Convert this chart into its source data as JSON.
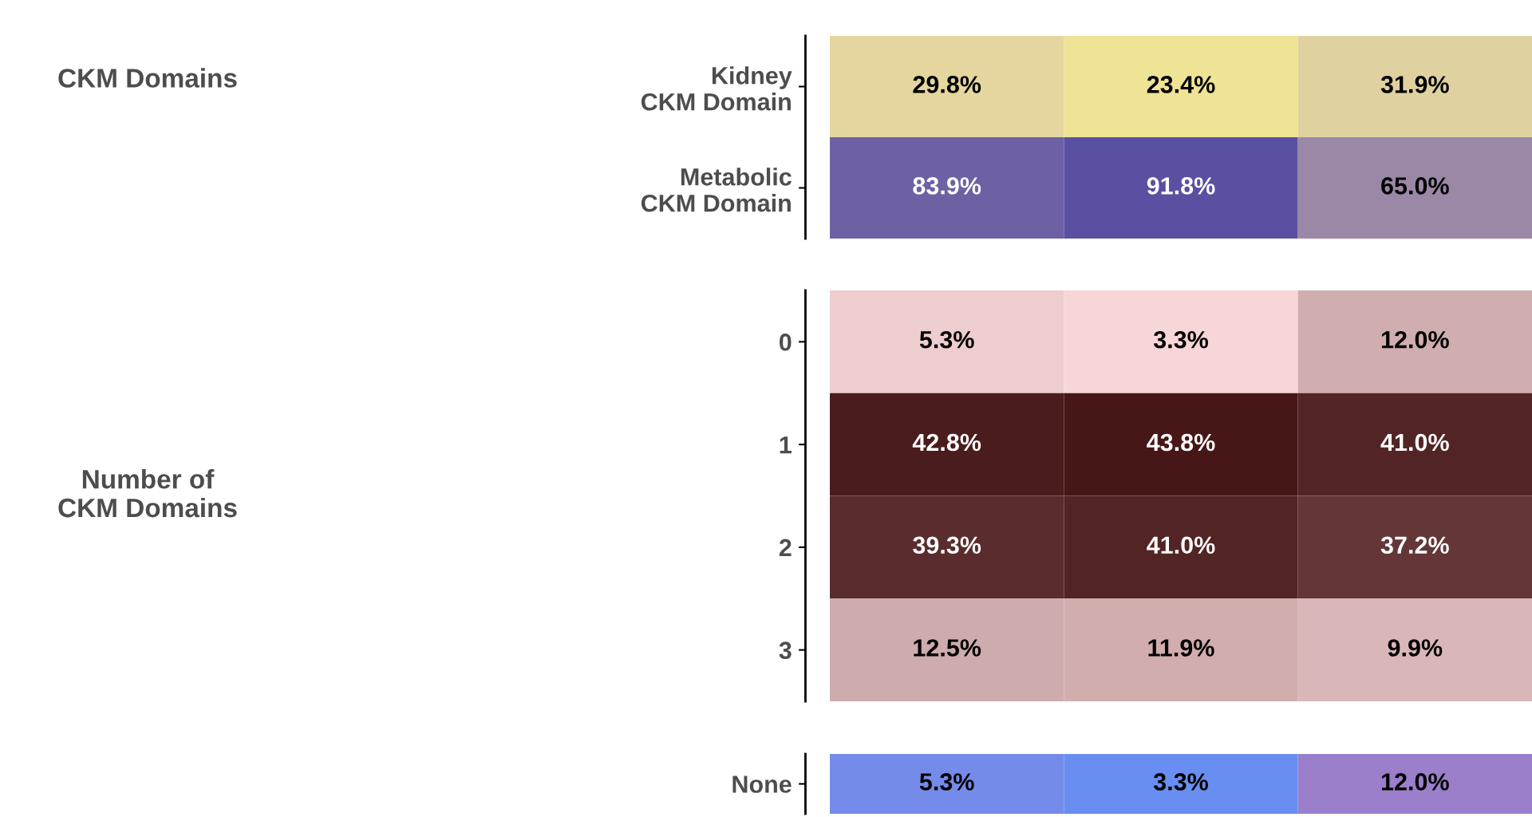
{
  "chart_data": [
    {
      "type": "heatmap",
      "ylabel": "CKM Domains",
      "categories": [
        null,
        null,
        null
      ],
      "y_categories": [
        "Kidney\nCKM Domain",
        "Metabolic\nCKM Domain"
      ],
      "tick_labels": "y",
      "cells": [
        [
          29.8,
          23.4,
          31.9
        ],
        [
          83.9,
          91.8,
          65.0
        ]
      ],
      "cell_labels": [
        [
          "29.8%",
          "23.4%",
          "31.9%"
        ],
        [
          "83.9%",
          "91.8%",
          "65.0%"
        ]
      ],
      "colors": [
        [
          "#efe396",
          "#e0d2a0"
        ],
        [
          "#9a88a6",
          "#5a50a2"
        ]
      ]
    },
    {
      "type": "heatmap",
      "ylabel": "Number of\nCKM Domains",
      "categories": [
        null,
        null,
        null
      ],
      "y_categories": [
        "0",
        "1",
        "2",
        "3"
      ],
      "tick_labels": "y",
      "cells": [
        [
          5.3,
          3.3,
          12.0
        ],
        [
          42.8,
          43.8,
          41.0
        ],
        [
          39.3,
          41.0,
          37.2
        ],
        [
          12.5,
          11.9,
          9.9
        ]
      ],
      "cell_labels": [
        [
          "5.3%",
          "3.3%",
          "12.0%"
        ],
        [
          "42.8%",
          "43.8%",
          "41.0%"
        ],
        [
          "39.3%",
          "41.0%",
          "37.2%"
        ],
        [
          "12.5%",
          "11.9%",
          "9.9%"
        ]
      ],
      "colors": [
        [
          "#f6d6d7",
          "#471718"
        ]
      ]
    },
    {
      "type": "heatmap",
      "categories": [
        null,
        null,
        null
      ],
      "y_categories": [
        "None"
      ],
      "tick_labels": "y",
      "cells": [
        [
          5.3,
          3.3,
          12.0
        ]
      ],
      "cell_labels": [
        [
          "5.3%",
          "3.3%",
          "12.0%"
        ]
      ],
      "colors": [
        [
          "#688ef2",
          "#9b7fcb"
        ]
      ]
    }
  ]
}
